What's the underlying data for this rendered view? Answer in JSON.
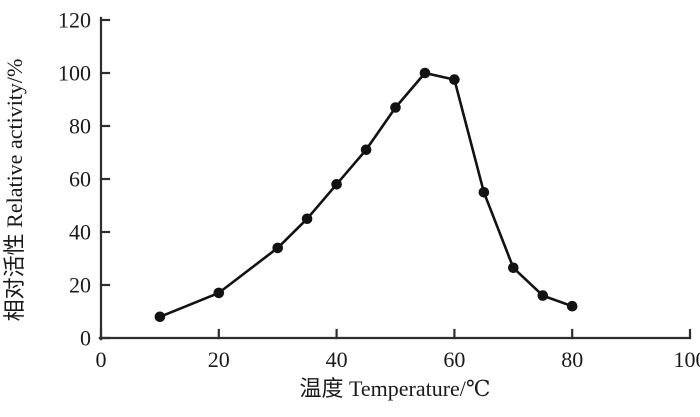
{
  "figure": {
    "background": "#ffffff"
  },
  "chart_data": {
    "type": "line",
    "xlabel": "温度 Temperature/℃",
    "ylabel": "相对活性 Relative activity/%",
    "xlim": [
      0,
      100
    ],
    "ylim": [
      0,
      120
    ],
    "x_ticks": [
      0,
      20,
      40,
      60,
      80,
      100
    ],
    "y_ticks": [
      0,
      20,
      40,
      60,
      80,
      100,
      120
    ],
    "grid": false,
    "legend": false,
    "axis_color": "#2e2e2e",
    "text_color": "#1a1a1a",
    "series": [
      {
        "name": "relative-activity",
        "marker": "filled-circle",
        "color": "#121212",
        "x": [
          10,
          20,
          30,
          35,
          40,
          45,
          50,
          55,
          60,
          65,
          70,
          75,
          80
        ],
        "values": [
          8,
          17,
          34,
          45,
          58,
          71,
          87,
          100,
          97.5,
          55,
          26.5,
          16,
          12
        ]
      }
    ]
  }
}
